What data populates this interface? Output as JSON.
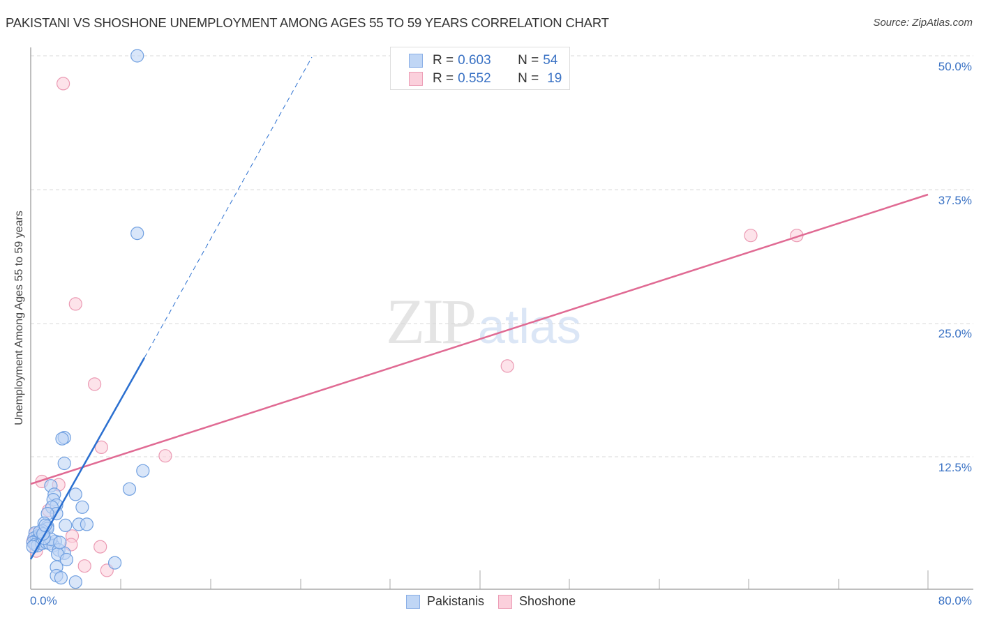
{
  "header": {
    "title": "PAKISTANI VS SHOSHONE UNEMPLOYMENT AMONG AGES 55 TO 59 YEARS CORRELATION CHART",
    "source": "Source: ZipAtlas.com"
  },
  "watermark": {
    "zip": "ZIP",
    "atlas": "atlas"
  },
  "legend_top": {
    "rows": [
      {
        "r_label": "R = ",
        "r_value": "0.603",
        "n_label": "N = ",
        "n_value": "54",
        "color": "#c0d6f5"
      },
      {
        "r_label": "R = ",
        "r_value": "0.552",
        "n_label": "N = ",
        "n_value": "19",
        "color": "#fbd0dc"
      }
    ]
  },
  "legend_bottom": {
    "items": [
      {
        "label": "Pakistanis",
        "color": "#c0d6f5"
      },
      {
        "label": "Shoshone",
        "color": "#fbd0dc"
      }
    ]
  },
  "axes": {
    "ylabel": "Unemployment Among Ages 55 to 59 years",
    "yticks": [
      "50.0%",
      "37.5%",
      "25.0%",
      "12.5%"
    ],
    "xticks": [
      "0.0%",
      "80.0%"
    ]
  },
  "colors": {
    "pakistanis_fill": "#c0d6f5",
    "pakistanis_stroke": "#6f9fe0",
    "pakistanis_line": "#2a6fd0",
    "shoshone_fill": "#fbd0dc",
    "shoshone_stroke": "#eb9ab3",
    "shoshone_line": "#e06a93",
    "tick_text": "#3a72c4"
  },
  "chart_data": {
    "type": "scatter",
    "title": "PAKISTANI VS SHOSHONE UNEMPLOYMENT AMONG AGES 55 TO 59 YEARS CORRELATION CHART",
    "xlabel": "",
    "ylabel": "Unemployment Among Ages 55 to 59 years",
    "xlim": [
      0,
      80
    ],
    "ylim": [
      0,
      51
    ],
    "x_ticks": [
      "0.0%",
      "80.0%"
    ],
    "y_ticks": [
      "12.5%",
      "25.0%",
      "37.5%",
      "50.0%"
    ],
    "grid": "horizontal dashed",
    "legend_position": "bottom center",
    "series": [
      {
        "name": "Pakistanis",
        "R": 0.603,
        "N": 54,
        "trendline": {
          "x": [
            0,
            10.1
          ],
          "y": [
            2.9,
            21.7
          ],
          "extended_dashed_to": [
            25.0,
            49.8
          ]
        },
        "points": [
          [
            9.5,
            50.0
          ],
          [
            9.5,
            33.4
          ],
          [
            3.0,
            14.3
          ],
          [
            2.8,
            14.2
          ],
          [
            3.0,
            11.9
          ],
          [
            10.0,
            11.2
          ],
          [
            8.8,
            9.5
          ],
          [
            1.8,
            9.8
          ],
          [
            2.1,
            9.0
          ],
          [
            4.0,
            9.0
          ],
          [
            2.0,
            8.5
          ],
          [
            2.3,
            8.0
          ],
          [
            1.9,
            7.8
          ],
          [
            4.6,
            7.8
          ],
          [
            2.3,
            7.2
          ],
          [
            1.5,
            7.2
          ],
          [
            1.2,
            6.3
          ],
          [
            1.5,
            6.0
          ],
          [
            3.1,
            6.1
          ],
          [
            4.3,
            6.2
          ],
          [
            5.0,
            6.2
          ],
          [
            1.5,
            5.8
          ],
          [
            1.0,
            5.6
          ],
          [
            0.4,
            5.4
          ],
          [
            0.6,
            5.1
          ],
          [
            0.8,
            5.0
          ],
          [
            0.3,
            4.9
          ],
          [
            0.5,
            4.7
          ],
          [
            0.7,
            4.8
          ],
          [
            0.9,
            4.6
          ],
          [
            0.2,
            4.5
          ],
          [
            0.4,
            4.3
          ],
          [
            0.6,
            4.2
          ],
          [
            1.0,
            4.4
          ],
          [
            1.4,
            4.5
          ],
          [
            1.7,
            4.4
          ],
          [
            2.2,
            4.6
          ],
          [
            2.0,
            4.2
          ],
          [
            1.8,
            4.8
          ],
          [
            1.2,
            4.9
          ],
          [
            0.2,
            4.1
          ],
          [
            2.5,
            3.8
          ],
          [
            3.0,
            3.5
          ],
          [
            0.8,
            5.5
          ],
          [
            1.1,
            5.3
          ],
          [
            2.4,
            3.4
          ],
          [
            3.2,
            2.9
          ],
          [
            2.3,
            2.2
          ],
          [
            2.3,
            1.4
          ],
          [
            2.7,
            1.2
          ],
          [
            4.0,
            0.8
          ],
          [
            7.5,
            2.6
          ],
          [
            1.3,
            6.1
          ],
          [
            2.6,
            4.5
          ]
        ]
      },
      {
        "name": "Shoshone",
        "R": 0.552,
        "N": 19,
        "trendline": {
          "x": [
            0,
            80
          ],
          "y": [
            9.8,
            36.8
          ]
        },
        "points": [
          [
            2.9,
            47.4
          ],
          [
            4.0,
            26.8
          ],
          [
            5.7,
            19.3
          ],
          [
            42.5,
            21.0
          ],
          [
            64.2,
            33.2
          ],
          [
            68.3,
            33.2
          ],
          [
            6.3,
            13.4
          ],
          [
            12.0,
            12.6
          ],
          [
            1.0,
            10.2
          ],
          [
            2.5,
            9.9
          ],
          [
            1.6,
            7.5
          ],
          [
            3.7,
            5.1
          ],
          [
            6.2,
            4.1
          ],
          [
            3.6,
            4.3
          ],
          [
            4.8,
            2.3
          ],
          [
            6.8,
            1.9
          ],
          [
            0.2,
            4.6
          ],
          [
            0.5,
            3.7
          ],
          [
            0.4,
            5.3
          ]
        ]
      }
    ]
  }
}
